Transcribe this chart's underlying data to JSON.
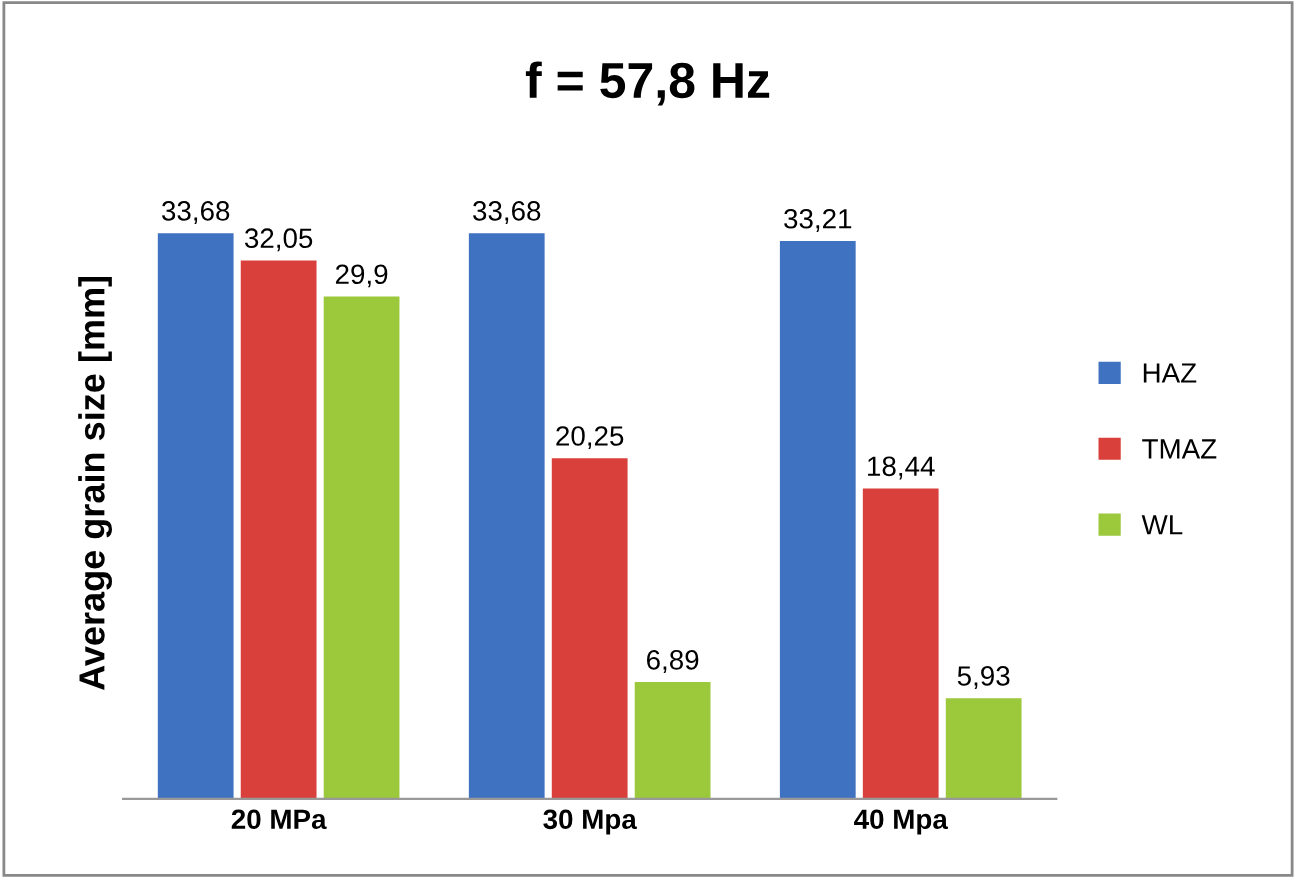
{
  "chart_data": {
    "type": "bar",
    "title": "f = 57,8 Hz",
    "ylabel": "Average grain size [mm]",
    "categories": [
      "20 MPa",
      "30 Mpa",
      "40 Mpa"
    ],
    "series": [
      {
        "name": "HAZ",
        "color": "#3f72c0",
        "values": [
          33.68,
          33.68,
          33.21
        ],
        "value_labels": [
          "33,68",
          "33,68",
          "33,21"
        ]
      },
      {
        "name": "TMAZ",
        "color": "#d9403c",
        "values": [
          32.05,
          20.25,
          18.44
        ],
        "value_labels": [
          "32,05",
          "20,25",
          "18,44"
        ]
      },
      {
        "name": "WL",
        "color": "#9cc83c",
        "values": [
          29.9,
          6.89,
          5.93
        ],
        "value_labels": [
          "29,9",
          "6,89",
          "5,93"
        ]
      }
    ],
    "legend": "right",
    "grid": false
  }
}
